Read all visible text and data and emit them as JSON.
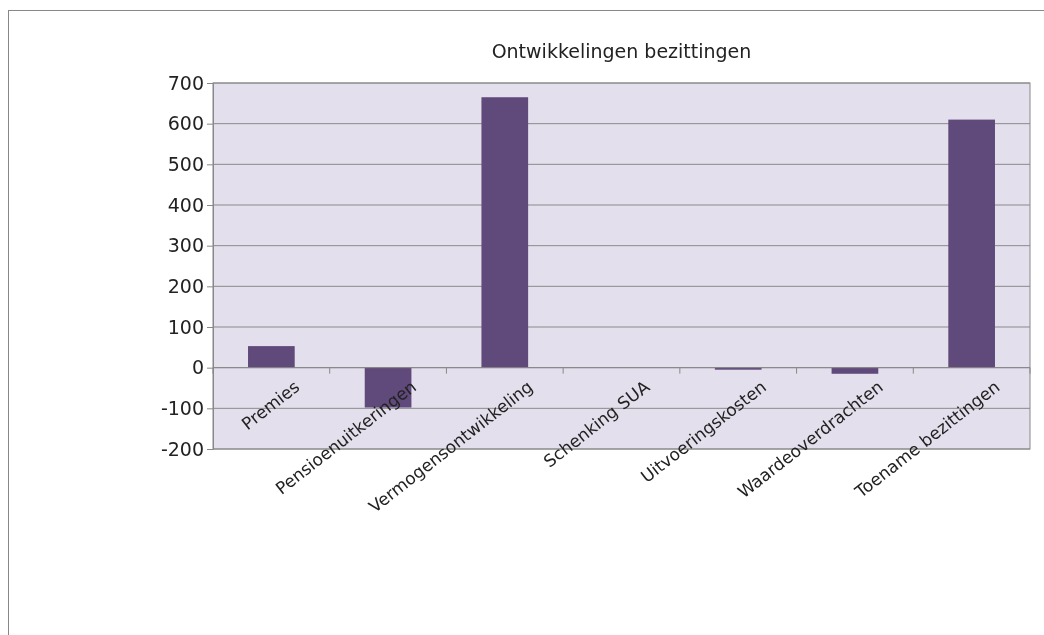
{
  "chart_data": {
    "type": "bar",
    "title": "Ontwikkelingen  bezittingen",
    "categories": [
      "Premies",
      "Pensioenuitkeringen",
      "Vermogensontwikkeling",
      "Schenking SUA",
      "Uitvoeringskosten",
      "Waardeoverdrachten",
      "Toename bezittingen"
    ],
    "values": [
      53,
      -98,
      665,
      0,
      -5,
      -15,
      610
    ],
    "color": "#604a7b",
    "ylim": [
      -200,
      700
    ],
    "yticks": [
      -200,
      -100,
      0,
      100,
      200,
      300,
      400,
      500,
      600,
      700
    ],
    "grid": "y"
  }
}
